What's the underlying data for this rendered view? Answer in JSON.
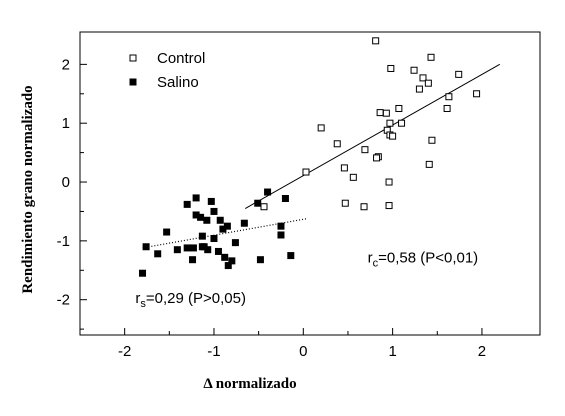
{
  "chart_data": {
    "type": "scatter",
    "xlabel": "Δ  normalizado",
    "ylabel": "Rendimiento grano normalizado",
    "xlim": [
      -2.5,
      2.65
    ],
    "ylim": [
      -2.6,
      2.55
    ],
    "x_ticks": [
      -2,
      -1,
      0,
      1,
      2
    ],
    "x_tick_labels": [
      "-2",
      "-1",
      "0",
      "1",
      "2"
    ],
    "y_ticks": [
      -2,
      -1,
      0,
      1,
      2
    ],
    "y_tick_labels": [
      "-2",
      "-1",
      "0",
      "1",
      "2"
    ],
    "grid": false,
    "legend_position": "top-left",
    "series": [
      {
        "name": "Control",
        "marker": "open-square",
        "points": [
          [
            0.81,
            2.4
          ],
          [
            1.43,
            2.12
          ],
          [
            0.98,
            1.93
          ],
          [
            1.24,
            1.9
          ],
          [
            1.74,
            1.83
          ],
          [
            1.34,
            1.77
          ],
          [
            1.4,
            1.68
          ],
          [
            1.3,
            1.58
          ],
          [
            1.63,
            1.45
          ],
          [
            1.94,
            1.5
          ],
          [
            0.86,
            1.18
          ],
          [
            0.93,
            1.17
          ],
          [
            1.07,
            1.25
          ],
          [
            1.61,
            1.25
          ],
          [
            0.97,
            1.0
          ],
          [
            1.1,
            1.0
          ],
          [
            0.94,
            0.88
          ],
          [
            0.97,
            0.8
          ],
          [
            1.0,
            0.78
          ],
          [
            1.44,
            0.71
          ],
          [
            0.2,
            0.92
          ],
          [
            0.38,
            0.65
          ],
          [
            0.69,
            0.55
          ],
          [
            0.84,
            0.43
          ],
          [
            0.82,
            0.41
          ],
          [
            1.41,
            0.3
          ],
          [
            0.46,
            0.24
          ],
          [
            0.56,
            0.08
          ],
          [
            0.03,
            0.17
          ],
          [
            0.96,
            0.0
          ],
          [
            -0.44,
            -0.42
          ],
          [
            0.47,
            -0.36
          ],
          [
            0.68,
            -0.42
          ],
          [
            0.96,
            -0.4
          ]
        ]
      },
      {
        "name": "Salino",
        "marker": "filled-square",
        "points": [
          [
            -1.8,
            -1.55
          ],
          [
            -1.76,
            -1.1
          ],
          [
            -1.63,
            -1.22
          ],
          [
            -1.53,
            -0.85
          ],
          [
            -1.41,
            -1.15
          ],
          [
            -1.3,
            -0.38
          ],
          [
            -1.3,
            -1.12
          ],
          [
            -1.24,
            -1.32
          ],
          [
            -1.23,
            -1.12
          ],
          [
            -1.2,
            -0.27
          ],
          [
            -1.2,
            -0.56
          ],
          [
            -1.15,
            -0.6
          ],
          [
            -1.13,
            -0.92
          ],
          [
            -1.13,
            -1.1
          ],
          [
            -1.11,
            -1.1
          ],
          [
            -1.08,
            -0.65
          ],
          [
            -1.07,
            -1.15
          ],
          [
            -1.03,
            -0.33
          ],
          [
            -1.0,
            -0.5
          ],
          [
            -1.0,
            -0.96
          ],
          [
            -0.95,
            -1.18
          ],
          [
            -0.93,
            -0.65
          ],
          [
            -0.9,
            -0.8
          ],
          [
            -0.88,
            -1.28
          ],
          [
            -0.84,
            -1.42
          ],
          [
            -0.85,
            -0.75
          ],
          [
            -0.8,
            -1.34
          ],
          [
            -0.76,
            -1.03
          ],
          [
            -0.66,
            -0.7
          ],
          [
            -0.51,
            -0.36
          ],
          [
            -0.48,
            -1.32
          ],
          [
            -0.4,
            -0.17
          ],
          [
            -0.25,
            -0.75
          ],
          [
            -0.25,
            -0.9
          ],
          [
            -0.2,
            -0.28
          ],
          [
            -0.14,
            -1.25
          ]
        ]
      }
    ],
    "fit_lines": [
      {
        "series": "Control",
        "style": "solid",
        "from": [
          -0.65,
          -0.45
        ],
        "to": [
          2.2,
          2.0
        ]
      },
      {
        "series": "Salino",
        "style": "dotted",
        "from": [
          -1.8,
          -1.12
        ],
        "to": [
          0.05,
          -0.62
        ]
      }
    ],
    "annotations": [
      {
        "main": "r",
        "sub": "c",
        "rest": "=0,58 (P<0,01)",
        "at": [
          0.72,
          -1.37
        ]
      },
      {
        "main": "r",
        "sub": "s",
        "rest": "=0,29 (P>0,05)",
        "at": [
          -1.88,
          -2.06
        ]
      }
    ]
  }
}
